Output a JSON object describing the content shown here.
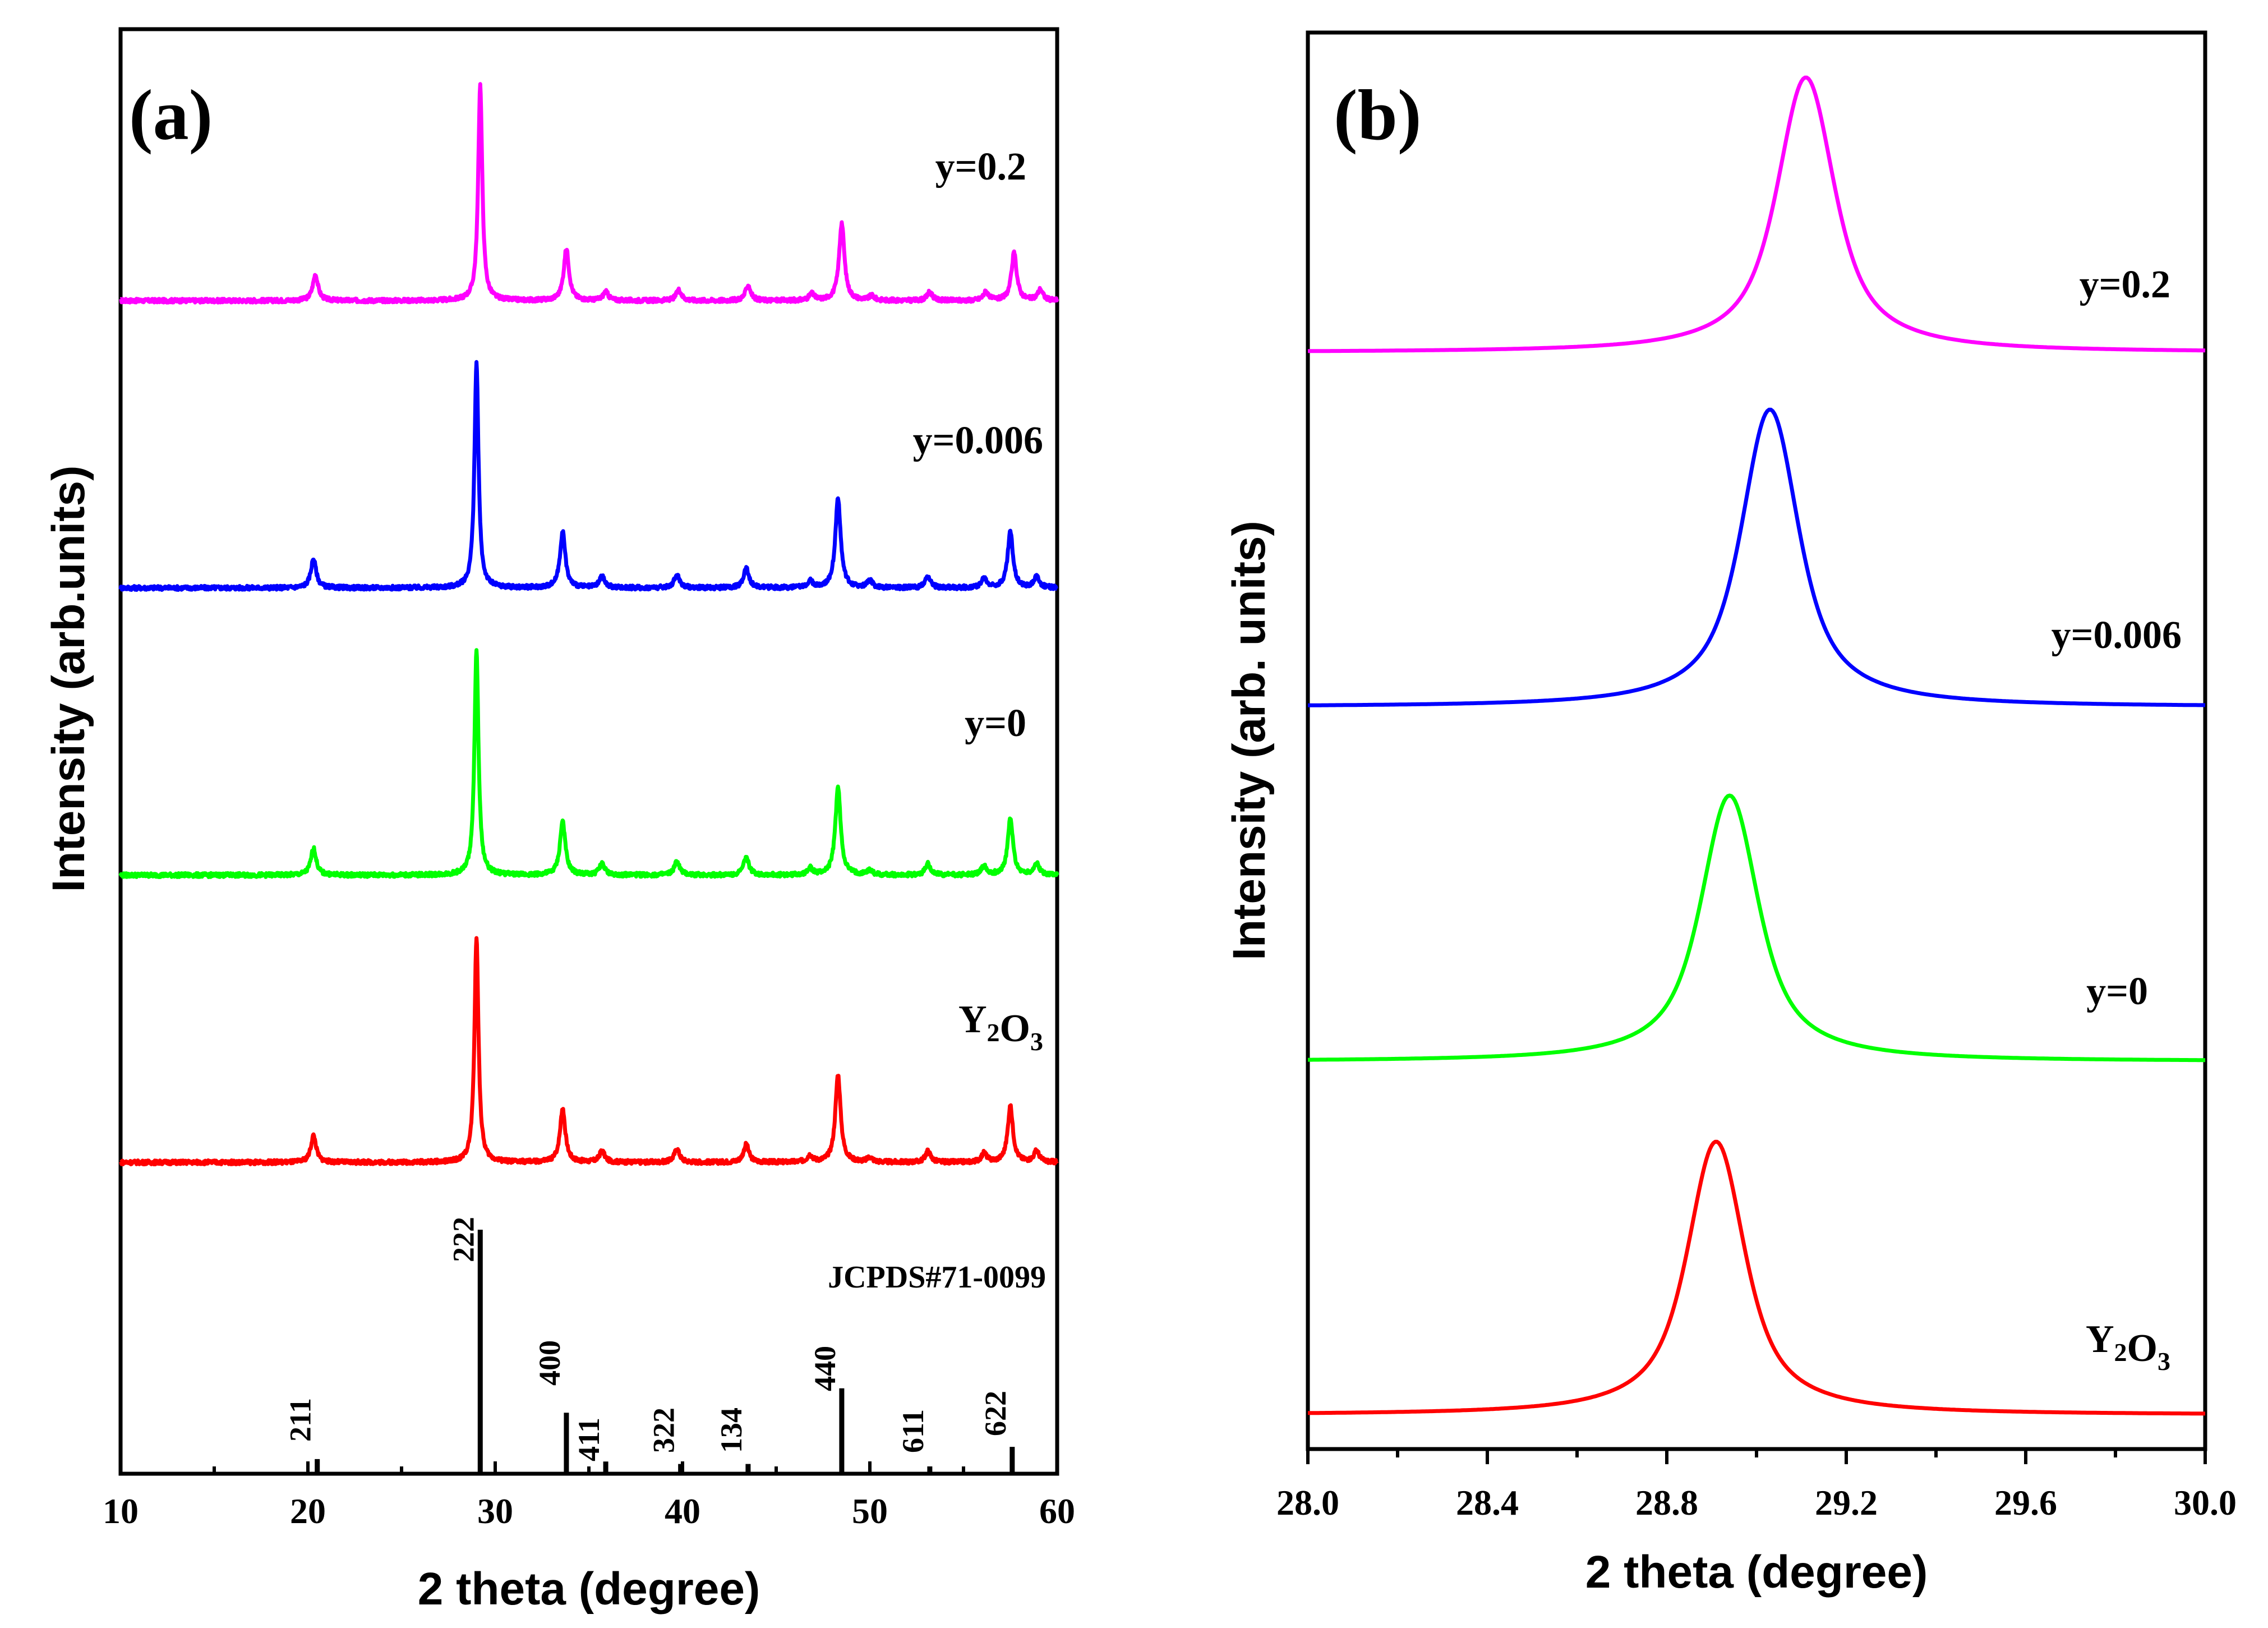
{
  "chart_data": [
    {
      "panel": "(a)",
      "type": "line",
      "xlabel": "2 theta (degree)",
      "ylabel": "Intensity (arb.units)",
      "xlim": [
        10,
        60
      ],
      "xticks": [
        "10",
        "20",
        "30",
        "40",
        "50",
        "60"
      ],
      "series": [
        {
          "name": "y=0.2",
          "color": "#ff00ff",
          "peaks": [
            [
              20.4,
              0.12
            ],
            [
              29.2,
              1.0
            ],
            [
              33.8,
              0.24
            ],
            [
              35.9,
              0.04
            ],
            [
              39.8,
              0.05
            ],
            [
              43.5,
              0.07
            ],
            [
              46.9,
              0.03
            ],
            [
              48.5,
              0.36
            ],
            [
              50.1,
              0.02
            ],
            [
              53.2,
              0.04
            ],
            [
              56.2,
              0.04
            ],
            [
              57.7,
              0.22
            ],
            [
              59.1,
              0.05
            ]
          ]
        },
        {
          "name": "y=0.006",
          "color": "#0000ff",
          "peaks": [
            [
              20.3,
              0.13
            ],
            [
              29.0,
              1.0
            ],
            [
              33.6,
              0.25
            ],
            [
              35.7,
              0.05
            ],
            [
              39.7,
              0.06
            ],
            [
              43.4,
              0.09
            ],
            [
              46.8,
              0.03
            ],
            [
              48.3,
              0.4
            ],
            [
              50.0,
              0.03
            ],
            [
              53.1,
              0.05
            ],
            [
              56.1,
              0.04
            ],
            [
              57.5,
              0.25
            ],
            [
              58.9,
              0.05
            ]
          ]
        },
        {
          "name": "y=0",
          "color": "#00ff00",
          "peaks": [
            [
              20.3,
              0.12
            ],
            [
              29.0,
              1.0
            ],
            [
              33.6,
              0.24
            ],
            [
              35.7,
              0.05
            ],
            [
              39.7,
              0.06
            ],
            [
              43.4,
              0.08
            ],
            [
              46.8,
              0.03
            ],
            [
              48.3,
              0.39
            ],
            [
              50.0,
              0.02
            ],
            [
              53.1,
              0.05
            ],
            [
              56.1,
              0.04
            ],
            [
              57.5,
              0.25
            ],
            [
              58.9,
              0.05
            ]
          ]
        },
        {
          "name": "Y2O3",
          "label_main": [
            "Y",
            "O"
          ],
          "label_sub": [
            "2",
            "3"
          ],
          "color": "#ff0000",
          "peaks": [
            [
              20.3,
              0.12
            ],
            [
              29.0,
              1.0
            ],
            [
              33.6,
              0.24
            ],
            [
              35.7,
              0.05
            ],
            [
              39.7,
              0.06
            ],
            [
              43.4,
              0.08
            ],
            [
              46.8,
              0.03
            ],
            [
              48.3,
              0.39
            ],
            [
              50.0,
              0.02
            ],
            [
              53.1,
              0.05
            ],
            [
              56.1,
              0.04
            ],
            [
              57.5,
              0.25
            ],
            [
              58.9,
              0.05
            ]
          ]
        }
      ],
      "reference": {
        "title": "JCPDS#71-0099",
        "sticks": [
          {
            "x": 20.5,
            "value": 0.06,
            "label": "211"
          },
          {
            "x": 29.2,
            "value": 1.0,
            "label": "222"
          },
          {
            "x": 33.8,
            "value": 0.25,
            "label": "400"
          },
          {
            "x": 35.9,
            "value": 0.05,
            "label": "411"
          },
          {
            "x": 39.9,
            "value": 0.04,
            "label": "322"
          },
          {
            "x": 43.5,
            "value": 0.04,
            "label": "134"
          },
          {
            "x": 48.5,
            "value": 0.35,
            "label": "440"
          },
          {
            "x": 53.2,
            "value": 0.03,
            "label": "611"
          },
          {
            "x": 57.6,
            "value": 0.11,
            "label": "622"
          }
        ]
      }
    },
    {
      "panel": "(b)",
      "type": "line",
      "xlabel": "2 theta (degree)",
      "ylabel": "Intensity (arb. units)",
      "xlim": [
        28.0,
        30.0
      ],
      "xticks": [
        "28.0",
        "28.4",
        "28.8",
        "29.2",
        "29.6",
        "30.0"
      ],
      "series": [
        {
          "name": "y=0.2",
          "color": "#ff00ff",
          "peak_center": 29.11
        },
        {
          "name": "y=0.006",
          "color": "#0000ff",
          "peak_center": 29.03
        },
        {
          "name": "y=0",
          "color": "#00ff00",
          "peak_center": 28.94
        },
        {
          "name": "Y2O3",
          "label_main": [
            "Y",
            "O"
          ],
          "label_sub": [
            "2",
            "3"
          ],
          "color": "#ff0000",
          "peak_center": 28.91
        }
      ]
    }
  ]
}
